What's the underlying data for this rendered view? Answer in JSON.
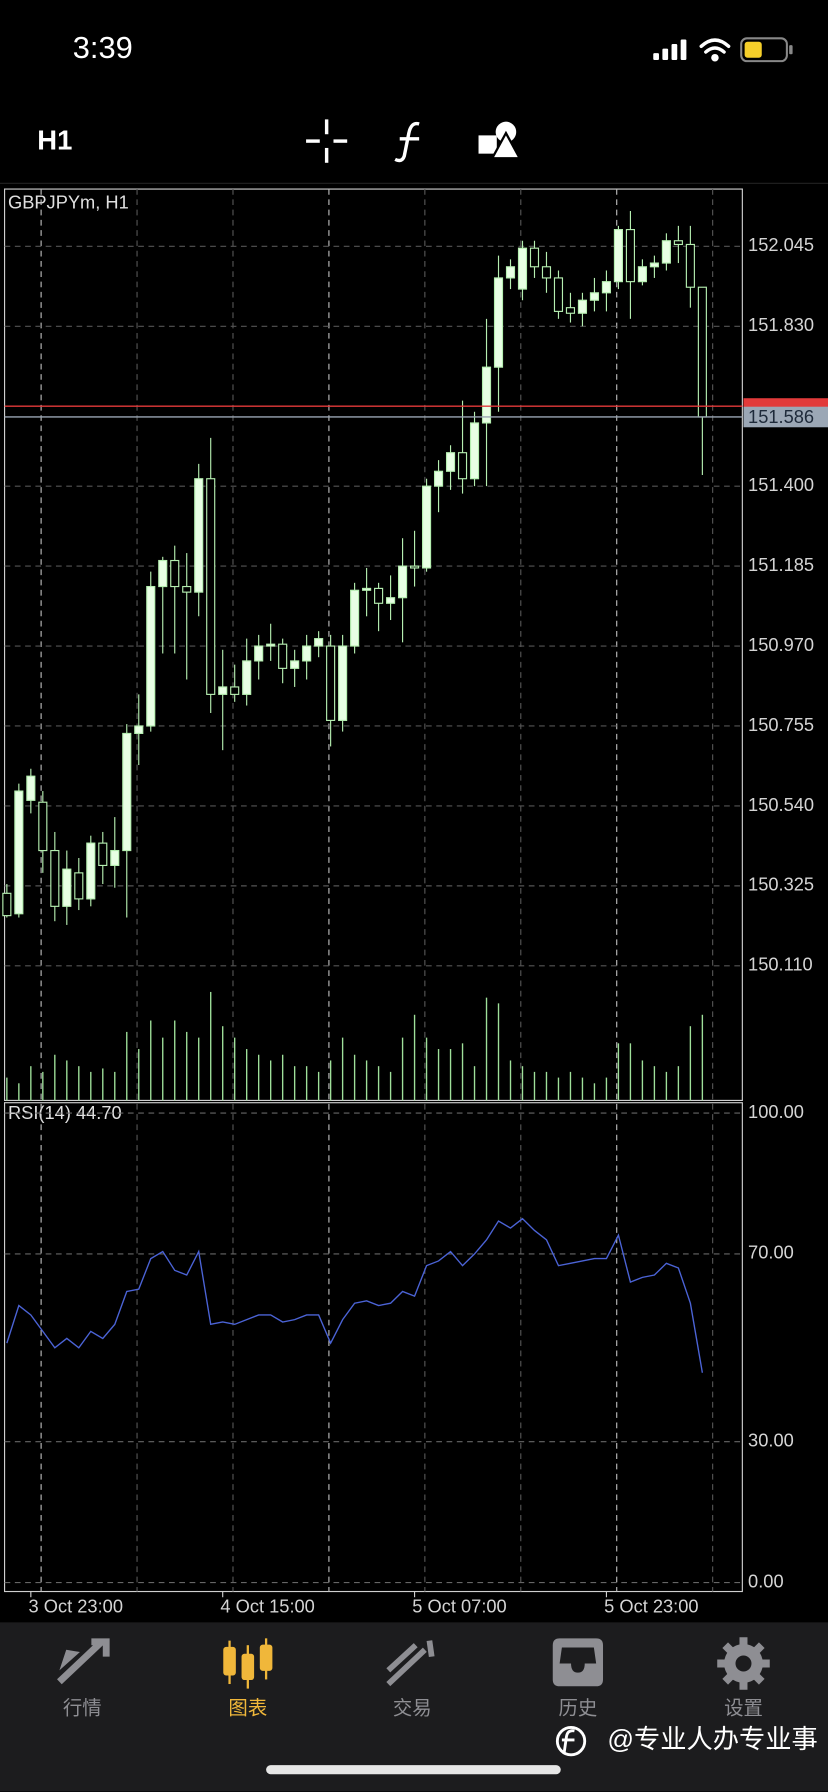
{
  "status_bar": {
    "time": "3:39"
  },
  "toolbar": {
    "timeframe": "H1"
  },
  "chart_data": [
    {
      "type": "candlestick",
      "title": "GBPJPYm, H1",
      "categories": [
        null,
        null,
        "3 Oct 23:00",
        null,
        null,
        null,
        null,
        null,
        null,
        null,
        null,
        null,
        null,
        null,
        null,
        null,
        null,
        null,
        "4 Oct 15:00",
        null,
        null,
        null,
        null,
        null,
        null,
        null,
        null,
        null,
        null,
        null,
        null,
        null,
        null,
        null,
        "5 Oct 07:00",
        null,
        null,
        null,
        null,
        null,
        null,
        null,
        null,
        null,
        null,
        null,
        null,
        null,
        null,
        null,
        "5 Oct 23:00",
        null,
        null,
        null,
        null,
        null,
        null,
        null,
        null
      ],
      "open": [
        150.305,
        150.25,
        150.555,
        150.55,
        150.42,
        150.27,
        150.36,
        150.29,
        150.44,
        150.38,
        150.42,
        150.735,
        150.755,
        151.13,
        151.2,
        151.13,
        151.115,
        151.42,
        150.84,
        150.86,
        150.84,
        150.93,
        150.97,
        150.975,
        150.91,
        150.93,
        150.97,
        150.97,
        150.77,
        150.97,
        151.12,
        151.125,
        151.085,
        151.1,
        151.185,
        151.18,
        151.4,
        151.44,
        151.49,
        151.42,
        151.57,
        151.72,
        151.96,
        151.93,
        152.04,
        151.99,
        151.96,
        151.88,
        151.865,
        151.9,
        151.92,
        151.95,
        152.09,
        151.95,
        151.99,
        152.0,
        152.06,
        152.05,
        151.935
      ],
      "high": [
        150.33,
        150.6,
        150.64,
        150.58,
        150.47,
        150.42,
        150.4,
        150.46,
        150.47,
        150.51,
        150.76,
        150.84,
        151.17,
        151.21,
        151.24,
        151.22,
        151.46,
        151.53,
        150.96,
        150.92,
        150.99,
        151.0,
        151.03,
        150.99,
        150.96,
        151.0,
        151.01,
        151.0,
        151.0,
        151.14,
        151.18,
        151.14,
        151.16,
        151.26,
        151.28,
        151.42,
        151.47,
        151.51,
        151.63,
        151.6,
        151.85,
        152.02,
        152.01,
        152.06,
        152.06,
        152.03,
        151.98,
        151.92,
        151.92,
        151.96,
        151.98,
        152.1,
        152.14,
        152.01,
        152.02,
        152.08,
        152.1,
        152.1,
        151.935
      ],
      "low": [
        150.24,
        150.24,
        150.52,
        150.36,
        150.23,
        150.22,
        150.26,
        150.27,
        150.33,
        150.32,
        150.24,
        150.65,
        150.74,
        150.95,
        150.95,
        150.88,
        151.05,
        150.79,
        150.69,
        150.82,
        150.81,
        150.88,
        150.93,
        150.87,
        150.86,
        150.88,
        150.94,
        150.7,
        150.74,
        150.95,
        151.05,
        151.01,
        151.04,
        150.98,
        151.13,
        151.17,
        151.33,
        151.39,
        151.38,
        151.4,
        151.4,
        151.6,
        151.93,
        151.9,
        151.96,
        151.92,
        151.85,
        151.84,
        151.83,
        151.87,
        151.87,
        151.93,
        151.85,
        151.94,
        151.96,
        151.98,
        152.0,
        151.88,
        151.43
      ],
      "close": [
        150.245,
        150.58,
        150.62,
        150.42,
        150.27,
        150.37,
        150.29,
        150.44,
        150.38,
        150.42,
        150.735,
        150.755,
        151.13,
        151.2,
        151.13,
        151.115,
        151.42,
        150.84,
        150.86,
        150.84,
        150.93,
        150.97,
        150.975,
        150.91,
        150.93,
        150.97,
        150.99,
        150.77,
        150.97,
        151.12,
        151.125,
        151.085,
        151.1,
        151.185,
        151.18,
        151.4,
        151.44,
        151.49,
        151.42,
        151.57,
        151.72,
        151.96,
        151.99,
        152.04,
        151.99,
        151.96,
        151.87,
        151.865,
        151.9,
        151.92,
        151.95,
        152.09,
        151.95,
        151.99,
        152.0,
        152.06,
        152.05,
        151.935,
        151.586
      ],
      "volume": [
        20,
        15,
        30,
        25,
        40,
        35,
        30,
        25,
        28,
        25,
        60,
        45,
        70,
        55,
        70,
        60,
        55,
        95,
        65,
        55,
        45,
        40,
        35,
        40,
        30,
        30,
        25,
        35,
        55,
        40,
        35,
        30,
        25,
        55,
        75,
        55,
        45,
        45,
        50,
        30,
        90,
        85,
        35,
        30,
        25,
        25,
        20,
        25,
        20,
        15,
        20,
        50,
        50,
        35,
        30,
        25,
        30,
        65,
        75
      ],
      "volume_ylim": [
        0,
        120
      ],
      "ylim": [
        149.748,
        152.199
      ],
      "yticks": [
        152.045,
        {
          "value": 151.83,
          "label": "151.830"
        },
        {
          "value": 151.4,
          "label": "151.400"
        },
        151.185,
        {
          "value": 150.97,
          "label": "150.970"
        },
        150.755,
        {
          "value": 150.54,
          "label": "150.540"
        },
        150.325,
        {
          "value": 150.11,
          "label": "150.110"
        }
      ],
      "bid": 151.586,
      "ask": 151.615,
      "up_color": "#e8ffe4",
      "down_color": "#000000",
      "outline_color": "#b5eeb0",
      "volume_color": "#9fe09a",
      "grid": true
    },
    {
      "type": "line",
      "title": "RSI(14) 44.70",
      "values": [
        51,
        59,
        57,
        53.5,
        50,
        52,
        50,
        53.5,
        52,
        55,
        62,
        62.5,
        69,
        70.5,
        66.5,
        65.5,
        70.5,
        55,
        55.5,
        55,
        56,
        57,
        57,
        55.5,
        56,
        57,
        57,
        51,
        56,
        59.5,
        60,
        59,
        59.5,
        62,
        61,
        67.5,
        68.5,
        70.5,
        67.5,
        70,
        73,
        77,
        75.5,
        77.5,
        75,
        73,
        67.5,
        68,
        68.5,
        69,
        69,
        74,
        64,
        65,
        65.5,
        68,
        67,
        59.5,
        44.7
      ],
      "color": "#4b63d6",
      "ylim": [
        -1.9,
        102.2
      ],
      "yticks": [
        {
          "value": 100,
          "label": "100.00"
        },
        {
          "value": 70,
          "label": "70.00"
        },
        {
          "value": 30,
          "label": "30.00"
        },
        {
          "value": 0,
          "label": "0.00"
        }
      ],
      "grid": true
    }
  ],
  "tab_bar": {
    "items": [
      {
        "label": "行情"
      },
      {
        "label": "图表"
      },
      {
        "label": "交易"
      },
      {
        "label": "历史"
      },
      {
        "label": "设置"
      }
    ],
    "active": 1
  },
  "watermark": "@专业人办专业事"
}
